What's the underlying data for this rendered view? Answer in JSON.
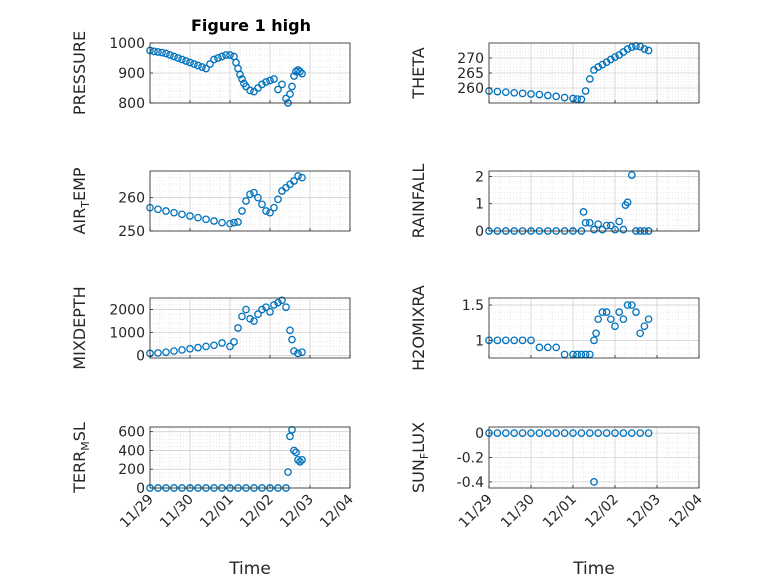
{
  "figure": {
    "title": "Figure 1 high"
  },
  "colors": {
    "marker": "#0072BD",
    "axes": "#262626",
    "grid": "#bdbdbd",
    "background": "#ffffff"
  },
  "chart_data": [
    {
      "type": "scatter",
      "ylabel": "PRESSURE",
      "xlabel": "",
      "title": "Figure 1 high",
      "xlim": [
        "11/29",
        "12/04"
      ],
      "ylim": [
        800,
        1000
      ],
      "yticks": [
        800,
        900,
        1000
      ],
      "ytick_labels": [
        "800",
        "900",
        "1000"
      ],
      "xtick_labels": [],
      "grid": true,
      "series": [
        {
          "x": [
            0.0,
            0.1,
            0.2,
            0.3,
            0.4,
            0.5,
            0.6,
            0.7,
            0.8,
            0.9,
            1.0,
            1.1,
            1.2,
            1.3,
            1.4,
            1.5,
            1.6,
            1.7,
            1.8,
            1.9,
            2.0,
            2.1,
            2.15,
            2.2,
            2.25,
            2.3,
            2.35,
            2.4,
            2.5,
            2.6,
            2.7,
            2.8,
            2.9,
            3.0,
            3.1,
            3.2,
            3.3,
            3.4,
            3.45,
            3.5,
            3.55,
            3.6,
            3.65,
            3.7,
            3.75,
            3.8
          ],
          "y": [
            975,
            972,
            970,
            968,
            965,
            960,
            955,
            950,
            945,
            940,
            935,
            930,
            925,
            920,
            915,
            930,
            945,
            950,
            955,
            960,
            960,
            955,
            935,
            915,
            895,
            880,
            865,
            855,
            842,
            838,
            850,
            862,
            870,
            875,
            880,
            845,
            862,
            815,
            800,
            830,
            855,
            890,
            905,
            910,
            905,
            898
          ]
        }
      ]
    },
    {
      "type": "scatter",
      "ylabel": "THETA",
      "xlabel": "",
      "xlim": [
        "11/29",
        "12/04"
      ],
      "ylim": [
        255,
        275
      ],
      "yticks": [
        260,
        265,
        270
      ],
      "ytick_labels": [
        "260",
        "265",
        "270"
      ],
      "xtick_labels": [],
      "grid": true,
      "series": [
        {
          "x": [
            0.0,
            0.2,
            0.4,
            0.6,
            0.8,
            1.0,
            1.2,
            1.4,
            1.6,
            1.8,
            2.0,
            2.1,
            2.2,
            2.3,
            2.4,
            2.5,
            2.6,
            2.7,
            2.8,
            2.9,
            3.0,
            3.1,
            3.2,
            3.3,
            3.4,
            3.5,
            3.6,
            3.7,
            3.8
          ],
          "y": [
            259,
            258.8,
            258.6,
            258.4,
            258.2,
            258,
            257.8,
            257.5,
            257.2,
            256.8,
            256.5,
            256.3,
            256.2,
            259,
            263,
            266,
            267,
            267.8,
            268.6,
            269.5,
            270.3,
            271,
            272,
            273,
            273.6,
            274,
            273.8,
            273,
            272.5
          ]
        }
      ]
    },
    {
      "type": "scatter",
      "ylabel": "AIR_TEMP",
      "xlabel": "",
      "xlim": [
        "11/29",
        "12/04"
      ],
      "ylim": [
        250,
        268
      ],
      "yticks": [
        250,
        260
      ],
      "ytick_labels": [
        "250",
        "260"
      ],
      "xtick_labels": [],
      "grid": true,
      "series": [
        {
          "x": [
            0.0,
            0.2,
            0.4,
            0.6,
            0.8,
            1.0,
            1.2,
            1.4,
            1.6,
            1.8,
            2.0,
            2.1,
            2.2,
            2.3,
            2.4,
            2.5,
            2.6,
            2.7,
            2.8,
            2.9,
            3.0,
            3.1,
            3.2,
            3.3,
            3.4,
            3.5,
            3.6,
            3.7,
            3.8
          ],
          "y": [
            257,
            256.5,
            256,
            255.5,
            255,
            254.5,
            254,
            253.5,
            253,
            252.5,
            252.2,
            252.5,
            252.7,
            256,
            259,
            261,
            261.5,
            260,
            258,
            256,
            255.5,
            257,
            259.5,
            262,
            263,
            264,
            265,
            266.5,
            266
          ]
        }
      ]
    },
    {
      "type": "scatter",
      "ylabel": "RAINFALL",
      "xlabel": "",
      "xlim": [
        "11/29",
        "12/04"
      ],
      "ylim": [
        0,
        2.2
      ],
      "yticks": [
        0,
        1,
        2
      ],
      "ytick_labels": [
        "0",
        "1",
        "2"
      ],
      "xtick_labels": [],
      "grid": true,
      "series": [
        {
          "x": [
            0.0,
            0.2,
            0.4,
            0.6,
            0.8,
            1.0,
            1.2,
            1.4,
            1.6,
            1.8,
            2.0,
            2.2,
            2.25,
            2.3,
            2.4,
            2.5,
            2.6,
            2.7,
            2.8,
            2.9,
            3.0,
            3.1,
            3.2,
            3.25,
            3.3,
            3.4,
            3.5,
            3.6,
            3.7,
            3.8
          ],
          "y": [
            0,
            0,
            0,
            0,
            0,
            0,
            0,
            0,
            0,
            0,
            0,
            0,
            0.7,
            0.3,
            0.3,
            0.05,
            0.25,
            0.05,
            0.2,
            0.2,
            0.05,
            0.35,
            0.05,
            0.95,
            1.05,
            2.05,
            0,
            0,
            0,
            0
          ]
        }
      ]
    },
    {
      "type": "scatter",
      "ylabel": "MIXDEPTH",
      "xlabel": "",
      "xlim": [
        "11/29",
        "12/04"
      ],
      "ylim": [
        -100,
        2500
      ],
      "yticks": [
        0,
        1000,
        2000
      ],
      "ytick_labels": [
        "0",
        "1000",
        "2000"
      ],
      "xtick_labels": [],
      "grid": true,
      "series": [
        {
          "x": [
            0.0,
            0.2,
            0.4,
            0.6,
            0.8,
            1.0,
            1.2,
            1.4,
            1.6,
            1.8,
            2.0,
            2.1,
            2.2,
            2.3,
            2.4,
            2.5,
            2.6,
            2.7,
            2.8,
            2.9,
            3.0,
            3.1,
            3.2,
            3.3,
            3.4,
            3.5,
            3.55,
            3.6,
            3.7,
            3.8
          ],
          "y": [
            100,
            120,
            150,
            200,
            250,
            300,
            350,
            400,
            450,
            550,
            400,
            600,
            1200,
            1700,
            2000,
            1600,
            1500,
            1800,
            2000,
            2100,
            1900,
            2200,
            2300,
            2400,
            2100,
            1100,
            700,
            200,
            100,
            150
          ]
        }
      ]
    },
    {
      "type": "scatter",
      "ylabel": "H2OMIXRA",
      "xlabel": "",
      "xlim": [
        "11/29",
        "12/04"
      ],
      "ylim": [
        0.75,
        1.6
      ],
      "yticks": [
        1,
        1.5
      ],
      "ytick_labels": [
        "1",
        "1.5"
      ],
      "xtick_labels": [],
      "grid": true,
      "series": [
        {
          "x": [
            0.0,
            0.2,
            0.4,
            0.6,
            0.8,
            1.0,
            1.2,
            1.4,
            1.6,
            1.8,
            2.0,
            2.1,
            2.2,
            2.3,
            2.4,
            2.5,
            2.55,
            2.6,
            2.7,
            2.8,
            2.9,
            3.0,
            3.1,
            3.2,
            3.3,
            3.4,
            3.5,
            3.6,
            3.7,
            3.8
          ],
          "y": [
            1.0,
            1.0,
            1.0,
            1.0,
            1.0,
            1.0,
            0.9,
            0.9,
            0.9,
            0.8,
            0.8,
            0.8,
            0.8,
            0.8,
            0.8,
            1.0,
            1.1,
            1.3,
            1.4,
            1.4,
            1.3,
            1.2,
            1.4,
            1.3,
            1.5,
            1.5,
            1.4,
            1.1,
            1.2,
            1.3
          ]
        }
      ]
    },
    {
      "type": "scatter",
      "ylabel": "TERR_MSL",
      "xlabel": "Time",
      "xlim": [
        "11/29",
        "12/04"
      ],
      "ylim": [
        0,
        650
      ],
      "yticks": [
        0,
        200,
        400,
        600
      ],
      "ytick_labels": [
        "0",
        "200",
        "400",
        "600"
      ],
      "xtick_labels": [
        "11/29",
        "11/30",
        "12/01",
        "12/02",
        "12/03",
        "12/04"
      ],
      "grid": true,
      "series": [
        {
          "x": [
            0.0,
            0.2,
            0.4,
            0.6,
            0.8,
            1.0,
            1.2,
            1.4,
            1.6,
            1.8,
            2.0,
            2.2,
            2.4,
            2.6,
            2.8,
            3.0,
            3.2,
            3.4,
            3.45,
            3.5,
            3.55,
            3.6,
            3.65,
            3.7,
            3.75,
            3.8
          ],
          "y": [
            0,
            0,
            0,
            0,
            0,
            0,
            0,
            0,
            0,
            0,
            0,
            0,
            0,
            0,
            0,
            0,
            0,
            0,
            170,
            550,
            620,
            400,
            380,
            300,
            280,
            300
          ]
        }
      ]
    },
    {
      "type": "scatter",
      "ylabel": "SUN_FLUX",
      "xlabel": "Time",
      "xlim": [
        "11/29",
        "12/04"
      ],
      "ylim": [
        -0.45,
        0.05
      ],
      "yticks": [
        -0.4,
        -0.2,
        0
      ],
      "ytick_labels": [
        "-0.4",
        "-0.2",
        "0"
      ],
      "xtick_labels": [
        "11/29",
        "11/30",
        "12/01",
        "12/02",
        "12/03",
        "12/04"
      ],
      "grid": true,
      "series": [
        {
          "x": [
            0.0,
            0.2,
            0.4,
            0.6,
            0.8,
            1.0,
            1.2,
            1.4,
            1.6,
            1.8,
            2.0,
            2.2,
            2.4,
            2.6,
            2.8,
            3.0,
            3.2,
            3.4,
            3.6,
            3.8,
            2.5
          ],
          "y": [
            0,
            0,
            0,
            0,
            0,
            0,
            0,
            0,
            0,
            0,
            0,
            0,
            0,
            0,
            0,
            0,
            0,
            0,
            0,
            0,
            -0.4
          ]
        }
      ]
    }
  ]
}
